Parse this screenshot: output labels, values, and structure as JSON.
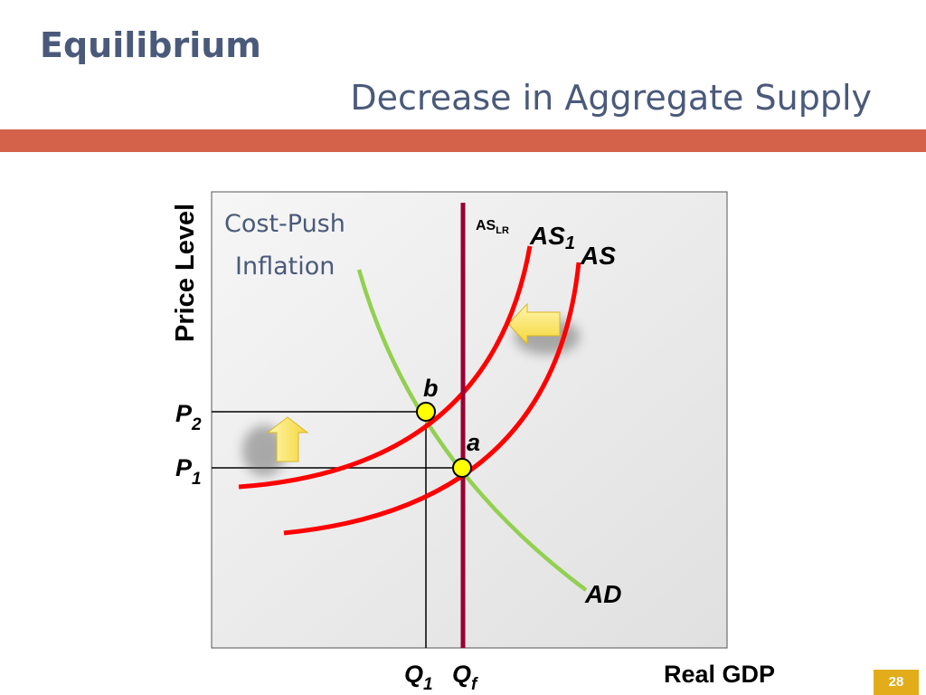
{
  "slide": {
    "title": "Equilibrium",
    "subtitle": "Decrease in Aggregate Supply",
    "page_number": "28"
  },
  "diagram": {
    "annotation_line1": "Cost-Push",
    "annotation_line2": "Inflation",
    "y_axis_label": "Price Level",
    "x_axis_label": "Real GDP",
    "p2_main": "P",
    "p2_sub": "2",
    "p1_main": "P",
    "p1_sub": "1",
    "q1_main": "Q",
    "q1_sub": "1",
    "qf_main": "Q",
    "qf_sub": "f",
    "as_lr_main": "AS",
    "as_lr_sub": "LR",
    "as1_main": "AS",
    "as1_sub": "1",
    "as_label": "AS",
    "ad_label": "AD",
    "point_b": "b",
    "point_a": "a"
  },
  "colors": {
    "title": "#4a5a7a",
    "accent_bar": "#d4614a",
    "plot_background": "#ececec",
    "ad_curve": "#92d050",
    "as_curves": "#ff0000",
    "as_lr_line": "#990033",
    "equilibrium_point": "#ffff00",
    "shift_arrow": "#ffe066",
    "page_badge": "#e3ac1b"
  }
}
